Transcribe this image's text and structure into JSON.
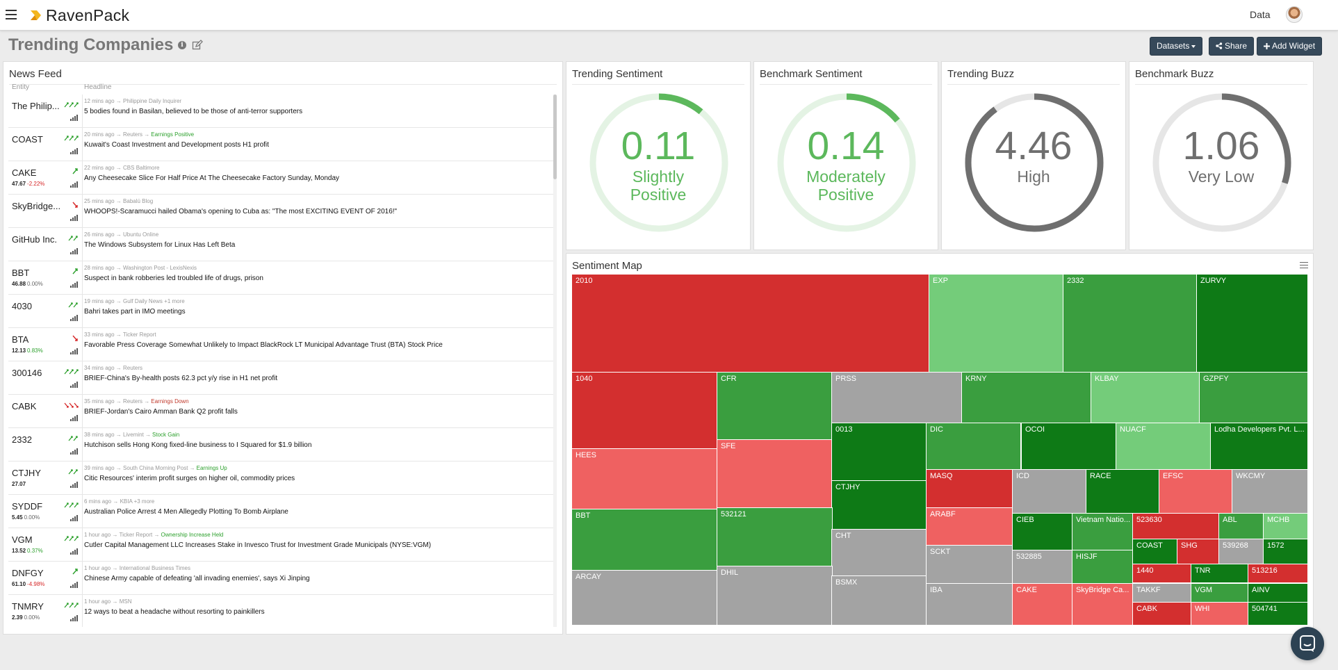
{
  "app": {
    "brand": "RavenPack",
    "nav_data": "Data"
  },
  "page": {
    "title": "Trending Companies"
  },
  "toolbar": {
    "datasets_label": "Datasets",
    "share_label": "Share",
    "add_widget_label": "Add Widget"
  },
  "news_feed": {
    "title": "News Feed",
    "col_entity": "Entity",
    "col_headline": "Headline",
    "rows": [
      {
        "entity": "The Philip...",
        "price": "",
        "change": "",
        "trend": "up3",
        "meta": "12 mins ago → Philippine Daily Inquirer",
        "tag": "",
        "headline": "5 bodies found in Basilan, believed to be those of anti-terror supporters"
      },
      {
        "entity": "COAST",
        "price": "",
        "change": "",
        "trend": "up3",
        "meta": "20 mins ago → Reuters →",
        "tag": "Earnings Positive",
        "tag_color": "#2ca02c",
        "headline": "Kuwait's Coast Investment and Development posts H1 profit"
      },
      {
        "entity": "CAKE",
        "price": "47.67",
        "change": "-2.22%",
        "change_color": "#d62728",
        "trend": "up1",
        "meta": "22 mins ago → CBS Baltimore",
        "tag": "",
        "headline": "Any Cheesecake Slice For Half Price At The Cheesecake Factory Sunday, Monday"
      },
      {
        "entity": "SkyBridge...",
        "price": "",
        "change": "",
        "trend": "down1",
        "meta": "25 mins ago → Babalú Blog",
        "tag": "",
        "headline": "WHOOPS!-Scaramucci hailed Obama's opening to Cuba as: \"The most EXCITING EVENT OF 2016!\""
      },
      {
        "entity": "GitHub Inc.",
        "price": "",
        "change": "",
        "trend": "up2",
        "meta": "26 mins ago → Ubuntu Online",
        "tag": "",
        "headline": "The Windows Subsystem for Linux Has Left Beta"
      },
      {
        "entity": "BBT",
        "price": "46.88",
        "change": "0.00%",
        "change_color": "#666666",
        "trend": "up1",
        "meta": "28 mins ago → Washington Post - LexisNexis",
        "tag": "",
        "headline": "Suspect in bank robberies led troubled life of drugs, prison"
      },
      {
        "entity": "4030",
        "price": "",
        "change": "",
        "trend": "up2",
        "meta": "19 mins ago → Gulf Daily News +1 more",
        "tag": "",
        "headline": "Bahri takes part in IMO meetings"
      },
      {
        "entity": "BTA",
        "price": "12.13",
        "change": "0.83%",
        "change_color": "#2ca02c",
        "trend": "down1",
        "meta": "33 mins ago → Ticker Report",
        "tag": "",
        "headline": "Favorable Press Coverage Somewhat Unlikely to Impact BlackRock LT Municipal Advantage Trust (BTA) Stock Price"
      },
      {
        "entity": "300146",
        "price": "",
        "change": "",
        "trend": "up3",
        "meta": "34 mins ago → Reuters",
        "tag": "",
        "headline": "BRIEF-China's By-health posts 62.3 pct y/y rise in H1 net profit"
      },
      {
        "entity": "CABK",
        "price": "",
        "change": "",
        "trend": "down3",
        "meta": "35 mins ago → Reuters →",
        "tag": "Earnings Down",
        "tag_color": "#c0392b",
        "headline": "BRIEF-Jordan's Cairo Amman Bank Q2 profit falls"
      },
      {
        "entity": "2332",
        "price": "",
        "change": "",
        "trend": "up2",
        "meta": "38 mins ago → Livemint →",
        "tag": "Stock Gain",
        "tag_color": "#2ca02c",
        "headline": "Hutchison sells Hong Kong fixed-line business to I Squared for $1.9 billion"
      },
      {
        "entity": "CTJHY",
        "price": "27.07",
        "change": "",
        "trend": "up2",
        "meta": "39 mins ago → South China Morning Post →",
        "tag": "Earnings Up",
        "tag_color": "#2ca02c",
        "headline": "Citic Resources' interim profit surges on higher oil, commodity prices"
      },
      {
        "entity": "SYDDF",
        "price": "5.45",
        "change": "0.00%",
        "change_color": "#666666",
        "trend": "up3",
        "meta": "6 mins ago → KBIA +3 more",
        "tag": "",
        "headline": "Australian Police Arrest 4 Men Allegedly Plotting To Bomb Airplane"
      },
      {
        "entity": "VGM",
        "price": "13.52",
        "change": "0.37%",
        "change_color": "#2ca02c",
        "trend": "up3",
        "meta": "1 hour ago → Ticker Report →",
        "tag": "Ownership Increase Held",
        "tag_color": "#2ca02c",
        "headline": "Cutler Capital Management LLC Increases Stake in Invesco Trust for Investment Grade Municipals (NYSE:VGM)"
      },
      {
        "entity": "DNFGY",
        "price": "61.10",
        "change": "-4.98%",
        "change_color": "#d62728",
        "trend": "up1",
        "meta": "1 hour ago → International Business Times",
        "tag": "",
        "headline": "Chinese Army capable of defeating 'all invading enemies', says Xi Jinping"
      },
      {
        "entity": "TNMRY",
        "price": "2.39",
        "change": "0.00%",
        "change_color": "#666666",
        "trend": "up3",
        "meta": "1 hour ago → MSN",
        "tag": "",
        "headline": "12 ways to beat a headache without resorting to painkillers"
      }
    ]
  },
  "gauges": [
    {
      "title": "Trending Sentiment",
      "value": "0.11",
      "label1": "Slightly",
      "label2": "Positive",
      "fraction": 0.11,
      "color": "#5cb85c",
      "track": "#e4f3e4"
    },
    {
      "title": "Benchmark Sentiment",
      "value": "0.14",
      "label1": "Moderately",
      "label2": "Positive",
      "fraction": 0.14,
      "color": "#5cb85c",
      "track": "#e4f3e4"
    },
    {
      "title": "Trending Buzz",
      "value": "4.46",
      "label1": "High",
      "label2": "",
      "fraction": 0.9,
      "color": "#6f6f6f",
      "track": "#e6e6e6"
    },
    {
      "title": "Benchmark Buzz",
      "value": "1.06",
      "label1": "Very Low",
      "label2": "",
      "fraction": 0.3,
      "color": "#6f6f6f",
      "track": "#e6e6e6"
    }
  ],
  "sentiment_map": {
    "title": "Sentiment Map",
    "tiles": [
      "2010",
      "EXP",
      "2332",
      "ZURVY",
      "1040",
      "CFR",
      "PRSS",
      "KRNY",
      "KLBAY",
      "GZPFY",
      "HEES",
      "SFE",
      "0013",
      "DIC",
      "OCOI",
      "NUACF",
      "Lodha Developers Pvt. L...",
      "CTJHY",
      "MASQ",
      "ICD",
      "RACE",
      "EFSC",
      "WKCMY",
      "ARABF",
      "CIEB",
      "Vietnam Natio...",
      "523630",
      "ABL",
      "MCHB",
      "BBT",
      "532121",
      "CHT",
      "SCKT",
      "532885",
      "HISJF",
      "COAST",
      "SHG",
      "539268",
      "1572",
      "1440",
      "TNR",
      "513216",
      "ARCAY",
      "DHIL",
      "BSMX",
      "IBA",
      "CAKE",
      "SkyBridge Ca...",
      "TAKKF",
      "VGM",
      "AINV",
      "CABK",
      "WHI",
      "504741"
    ]
  },
  "colors": {
    "strong_negative": "#d32f2f",
    "negative": "#ef6161",
    "neutral": "#a3a3a3",
    "light_positive": "#74cc7a",
    "positive": "#3a9e3f",
    "strong_positive": "#0e7a16"
  },
  "icons": [
    "hamburger-icon",
    "ravenpack-logo-icon",
    "info-icon",
    "edit-icon",
    "share-icon",
    "plus-icon",
    "chat-icon",
    "menu-icon"
  ]
}
